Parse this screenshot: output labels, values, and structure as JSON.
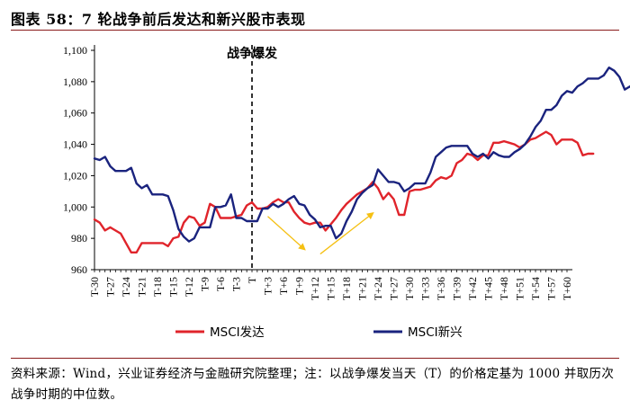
{
  "header": {
    "title": "图表 58：7 轮战争前后发达和新兴股市表现"
  },
  "footer": {
    "source": "资料来源：Wind，兴业证券经济与金融研究院整理；注：以战争爆发当天（T）的价格定基为 1000 并取历次战争时期的中位数。"
  },
  "chart_data": {
    "type": "line",
    "ylim": [
      960,
      1100
    ],
    "yticks": [
      960,
      980,
      1000,
      1020,
      1040,
      1060,
      1080,
      1100
    ],
    "yticklabels": [
      "960",
      "980",
      "1,000",
      "1,020",
      "1,040",
      "1,060",
      "1,080",
      "1,100"
    ],
    "x_start": -30,
    "x_end": 60,
    "xticklabels": [
      "T-30",
      "T-27",
      "T-24",
      "T-21",
      "T-18",
      "T-15",
      "T-12",
      "T-9",
      "T-6",
      "T-3",
      "T",
      "T+3",
      "T+6",
      "T+9",
      "T+12",
      "T+15",
      "T+18",
      "T+21",
      "T+24",
      "T+27",
      "T+30",
      "T+33",
      "T+36",
      "T+39",
      "T+42",
      "T+45",
      "T+48",
      "T+51",
      "T+54",
      "T+57",
      "T+60"
    ],
    "event_line": {
      "x": 0,
      "label": "战争爆发"
    },
    "legend_position": "bottom",
    "series": [
      {
        "name": "MSCI发达",
        "color": "#e0242b",
        "values": [
          992,
          990,
          985,
          987,
          985,
          983,
          977,
          971,
          971,
          977,
          977,
          977,
          977,
          977,
          975,
          980,
          981,
          990,
          994,
          993,
          988,
          990,
          1002,
          1000,
          993,
          993,
          993,
          994,
          995,
          1001,
          1003,
          999,
          999,
          1000,
          1003,
          1005,
          1003,
          1003,
          997,
          993,
          990,
          989,
          990,
          990,
          985,
          989,
          993,
          998,
          1002,
          1005,
          1008,
          1010,
          1012,
          1016,
          1012,
          1005,
          1009,
          1005,
          995,
          995,
          1010,
          1011,
          1011,
          1012,
          1013,
          1017,
          1019,
          1018,
          1020,
          1028,
          1030,
          1034,
          1033,
          1030,
          1033,
          1033,
          1041,
          1041,
          1042,
          1041,
          1040,
          1038,
          1040,
          1043,
          1044,
          1046,
          1048,
          1046,
          1040,
          1043,
          1043,
          1043,
          1041,
          1033,
          1034,
          1034
        ]
      },
      {
        "name": "MSCI新兴",
        "color": "#1a237e",
        "values": [
          1031,
          1030,
          1032,
          1026,
          1023,
          1023,
          1023,
          1025,
          1015,
          1012,
          1014,
          1008,
          1008,
          1008,
          1007,
          998,
          986,
          981,
          978,
          980,
          987,
          987,
          987,
          1000,
          1000,
          1001,
          1008,
          993,
          993,
          991,
          991,
          991,
          999,
          999,
          1002,
          1000,
          1002,
          1005,
          1007,
          1002,
          1001,
          995,
          992,
          987,
          988,
          988,
          980,
          983,
          991,
          997,
          1005,
          1009,
          1012,
          1014,
          1024,
          1020,
          1016,
          1016,
          1015,
          1010,
          1012,
          1015,
          1015,
          1015,
          1022,
          1032,
          1035,
          1038,
          1039,
          1039,
          1039,
          1039,
          1034,
          1032,
          1034,
          1031,
          1035,
          1033,
          1032,
          1032,
          1035,
          1037,
          1040,
          1045,
          1051,
          1055,
          1062,
          1062,
          1065,
          1071,
          1074,
          1073,
          1077,
          1079,
          1082,
          1082,
          1082,
          1084,
          1089,
          1087,
          1083,
          1075,
          1077,
          1073,
          1072,
          1072,
          1071,
          1068
        ]
      }
    ],
    "annotations": [
      {
        "type": "arrow",
        "from": [
          3,
          994
        ],
        "to": [
          10,
          973
        ],
        "color": "#f5c013"
      },
      {
        "type": "arrow",
        "from": [
          13,
          970
        ],
        "to": [
          23,
          996
        ],
        "color": "#f5c013"
      }
    ]
  }
}
